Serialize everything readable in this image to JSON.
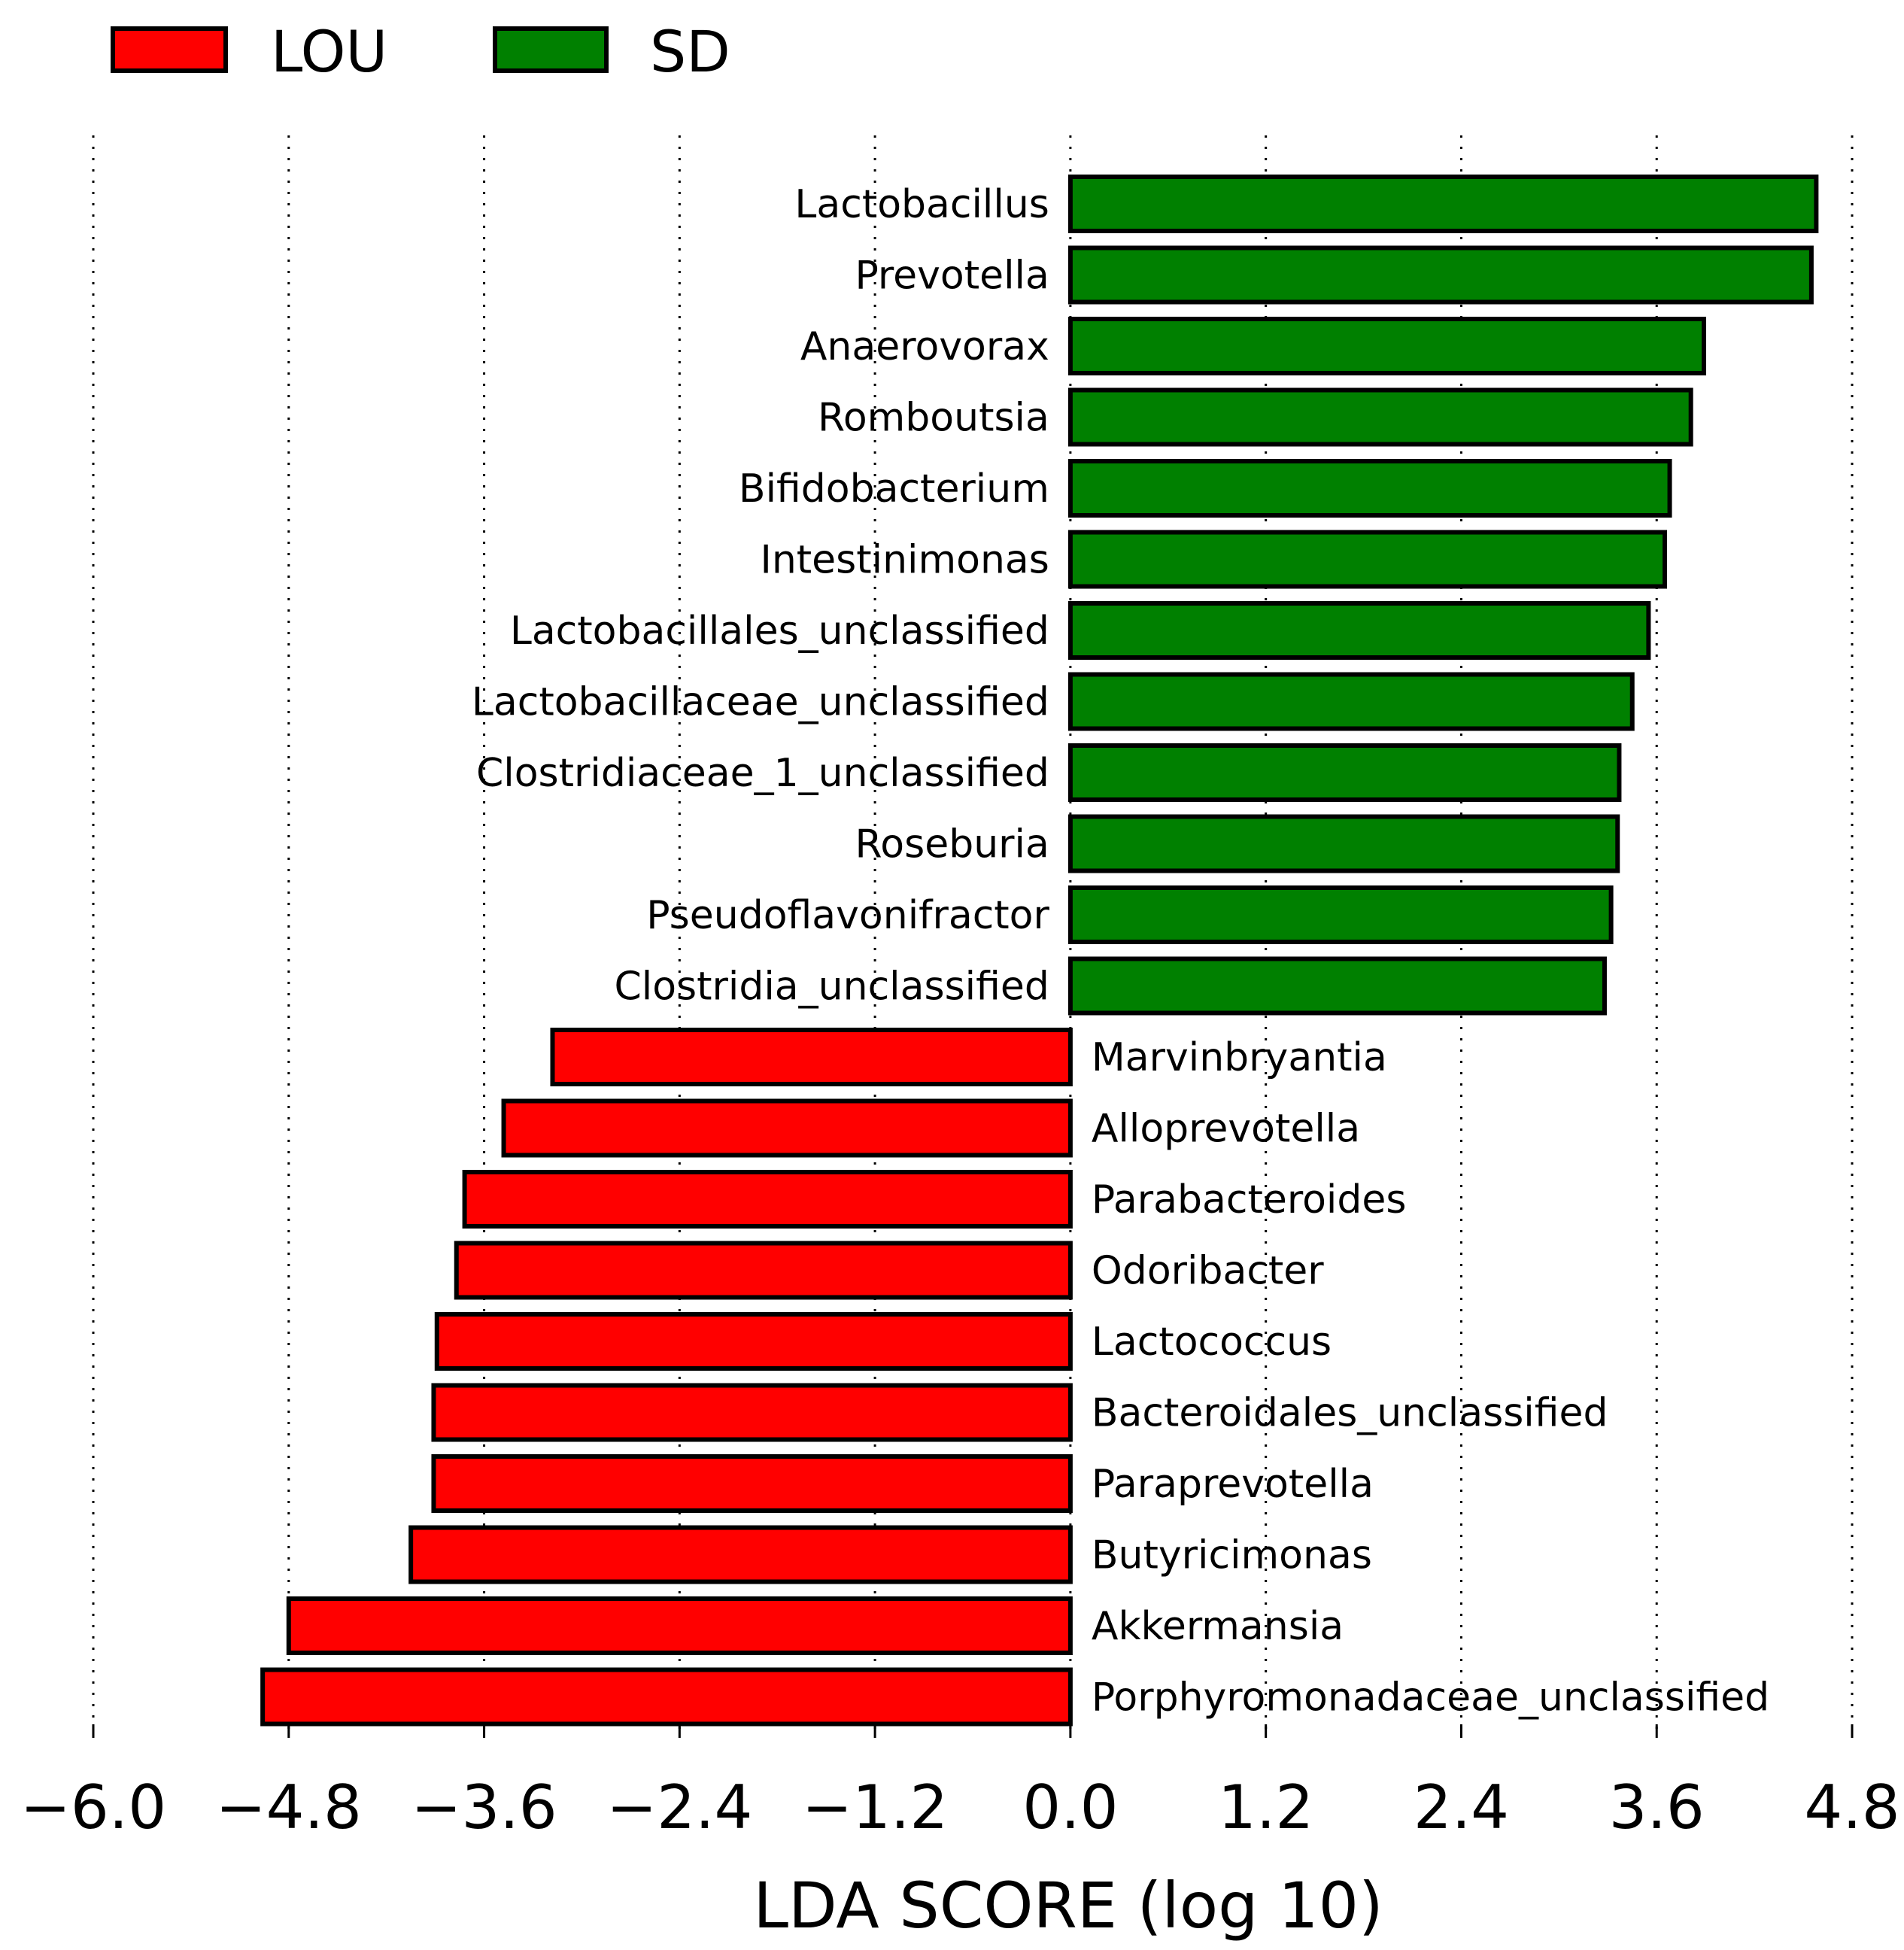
{
  "chart_data": {
    "type": "bar",
    "orientation": "horizontal",
    "xlabel": "LDA SCORE (log 10)",
    "xlim": [
      -6.0,
      4.8
    ],
    "xticks": [
      -6.0,
      -4.8,
      -3.6,
      -2.4,
      -1.2,
      0.0,
      1.2,
      2.4,
      3.6,
      4.8
    ],
    "xtick_labels": [
      "−6.0",
      "−4.8",
      "−3.6",
      "−2.4",
      "−1.2",
      "0.0",
      "1.2",
      "2.4",
      "3.6",
      "4.8"
    ],
    "grid": "vertical dotted",
    "legend_position": "top-left",
    "legend": [
      {
        "name": "LOU",
        "color": "#ff0000"
      },
      {
        "name": "SD",
        "color": "#008000"
      }
    ],
    "series": [
      {
        "name": "SD",
        "color": "#008000",
        "categories": [
          "Lactobacillus",
          "Prevotella",
          "Anaerovorax",
          "Romboutsia",
          "Bifidobacterium",
          "Intestinimonas",
          "Lactobacillales_unclassified",
          "Lactobacillaceae_unclassified",
          "Clostridiaceae_1_unclassified",
          "Roseburia",
          "Pseudoflavonifractor",
          "Clostridia_unclassified"
        ],
        "values": [
          4.58,
          4.55,
          3.89,
          3.81,
          3.68,
          3.65,
          3.55,
          3.45,
          3.37,
          3.36,
          3.32,
          3.28
        ]
      },
      {
        "name": "LOU",
        "color": "#ff0000",
        "categories": [
          "Marvinbryantia",
          "Alloprevotella",
          "Parabacteroides",
          "Odoribacter",
          "Lactococcus",
          "Bacteroidales_unclassified",
          "Paraprevotella",
          "Butyricimonas",
          "Akkermansia",
          "Porphyromonadaceae_unclassified"
        ],
        "values": [
          -3.18,
          -3.48,
          -3.72,
          -3.77,
          -3.89,
          -3.91,
          -3.91,
          -4.05,
          -4.8,
          -4.96
        ]
      }
    ]
  }
}
